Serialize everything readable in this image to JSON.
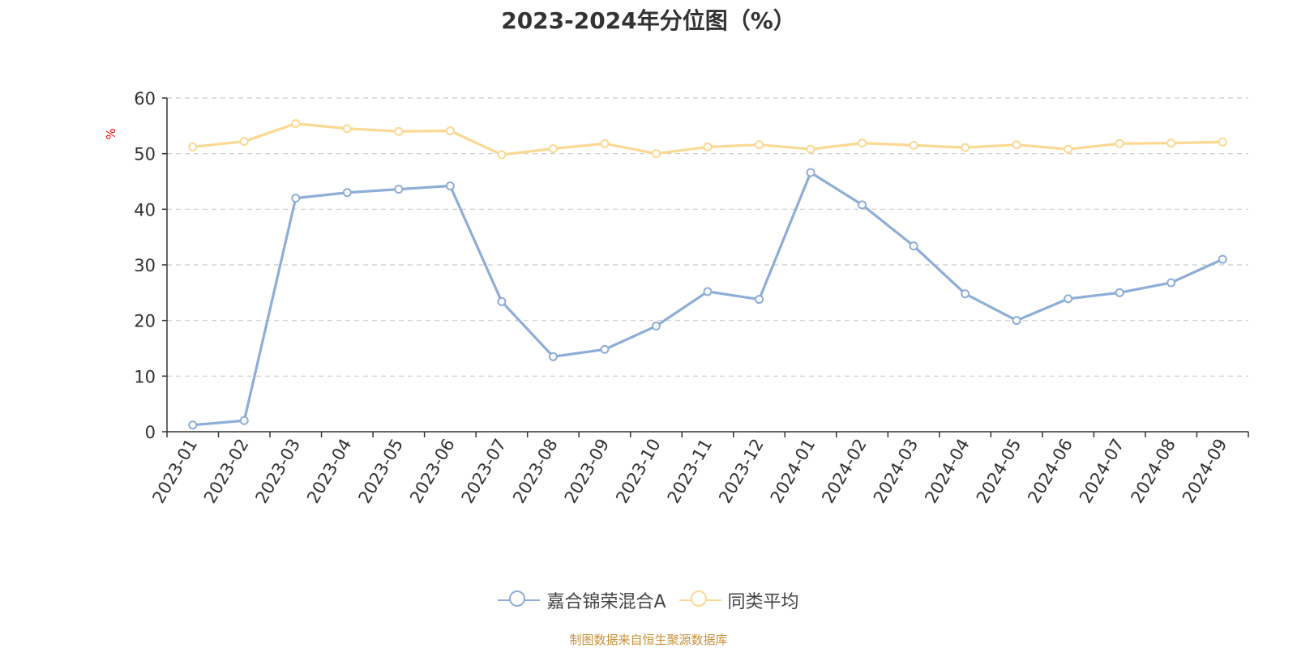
{
  "chart_data": {
    "type": "line",
    "title": "2023-2024年分位图（%）",
    "ylabel": "%",
    "ylim": [
      0,
      60
    ],
    "yticks": [
      0,
      10,
      20,
      30,
      40,
      50,
      60
    ],
    "grid": true,
    "legend_position": "bottom",
    "categories": [
      "2023-01",
      "2023-02",
      "2023-03",
      "2023-04",
      "2023-05",
      "2023-06",
      "2023-07",
      "2023-08",
      "2023-09",
      "2023-10",
      "2023-11",
      "2023-12",
      "2024-01",
      "2024-02",
      "2024-03",
      "2024-04",
      "2024-05",
      "2024-06",
      "2024-07",
      "2024-08",
      "2024-09"
    ],
    "series": [
      {
        "name": "嘉合锦荣混合A",
        "color": "#8eaed8",
        "values": [
          1.2,
          2.0,
          42.0,
          43.0,
          43.6,
          44.2,
          23.4,
          13.5,
          14.8,
          19.0,
          25.2,
          23.8,
          46.6,
          40.8,
          33.4,
          24.8,
          20.0,
          23.9,
          25.0,
          26.8,
          31.0
        ]
      },
      {
        "name": "同类平均",
        "color": "#fcd993",
        "values": [
          51.2,
          52.2,
          55.4,
          54.5,
          54.0,
          54.1,
          49.8,
          50.9,
          51.8,
          50.0,
          51.2,
          51.6,
          50.8,
          51.9,
          51.5,
          51.1,
          51.6,
          50.8,
          51.8,
          51.9,
          52.1
        ]
      }
    ],
    "unit_color": "#ff0000",
    "axis_color": "#333333",
    "grid_color": "#cccccc"
  },
  "source_note": "制图数据来自恒生聚源数据库"
}
